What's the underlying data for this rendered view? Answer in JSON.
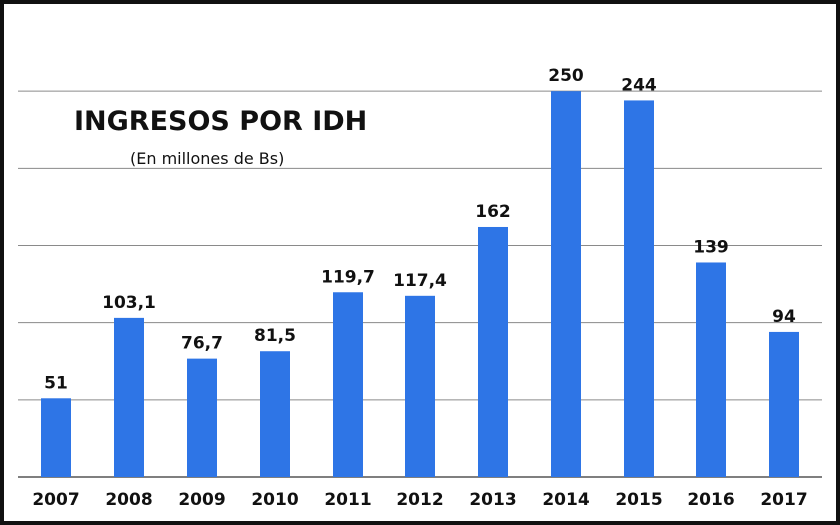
{
  "chart_data": {
    "type": "bar",
    "title": "INGRESOS POR IDH",
    "subtitle": "(En millones de Bs)",
    "xlabel": "",
    "ylabel": "",
    "categories": [
      "2007",
      "2008",
      "2009",
      "2010",
      "2011",
      "2012",
      "2013",
      "2014",
      "2015",
      "2016",
      "2017"
    ],
    "values": [
      51,
      103.1,
      76.7,
      81.5,
      119.7,
      117.4,
      162,
      250,
      244,
      139,
      94
    ],
    "value_labels": [
      "51",
      "103,1",
      "76,7",
      "81,5",
      "119,7",
      "117,4",
      "162",
      "250",
      "244",
      "139",
      "94"
    ],
    "ylim": [
      0,
      300
    ],
    "grid": true,
    "legend": "none",
    "bar_color": "#2e75e6"
  }
}
